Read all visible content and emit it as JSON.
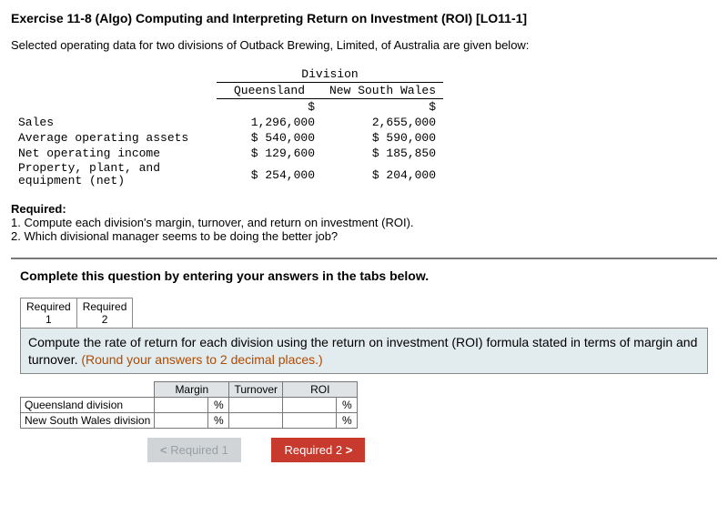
{
  "title": "Exercise 11-8 (Algo) Computing and Interpreting Return on Investment (ROI) [LO11-1]",
  "intro": "Selected operating data for two divisions of Outback Brewing, Limited, of Australia are given below:",
  "data_table": {
    "division_header": "Division",
    "col1": "Queensland",
    "col2": "New South Wales",
    "currency": "$",
    "rows": [
      {
        "label": "Sales",
        "v1": "1,296,000",
        "v2": "2,655,000",
        "prefix1": "",
        "prefix2": ""
      },
      {
        "label": "Average operating assets",
        "v1": "540,000",
        "v2": "590,000",
        "prefix1": "$ ",
        "prefix2": "$ "
      },
      {
        "label": "Net operating income",
        "v1": "129,600",
        "v2": "185,850",
        "prefix1": "$ ",
        "prefix2": "$ "
      },
      {
        "label": "Property, plant, and equipment (net)",
        "v1": "254,000",
        "v2": "204,000",
        "prefix1": "$ ",
        "prefix2": "$ "
      }
    ]
  },
  "required": {
    "header": "Required:",
    "line1": "1. Compute each division's margin, turnover, and return on investment (ROI).",
    "line2": "2. Which divisional manager seems to be doing the better job?"
  },
  "complete_line": "Complete this question by entering your answers in the tabs below.",
  "tabs": {
    "t1a": "Required",
    "t1b": "1",
    "t2a": "Required",
    "t2b": "2"
  },
  "prompt": {
    "main": "Compute the rate of return for each division using the return on investment (ROI) formula stated in terms of margin and turnover. ",
    "round": "(Round your answers to 2 decimal places.)"
  },
  "answer_table": {
    "h_margin": "Margin",
    "h_turnover": "Turnover",
    "h_roi": "ROI",
    "pct": "%",
    "r1": "Queensland division",
    "r2": "New South Wales division"
  },
  "nav": {
    "prev": "Required 1",
    "next": "Required 2"
  }
}
